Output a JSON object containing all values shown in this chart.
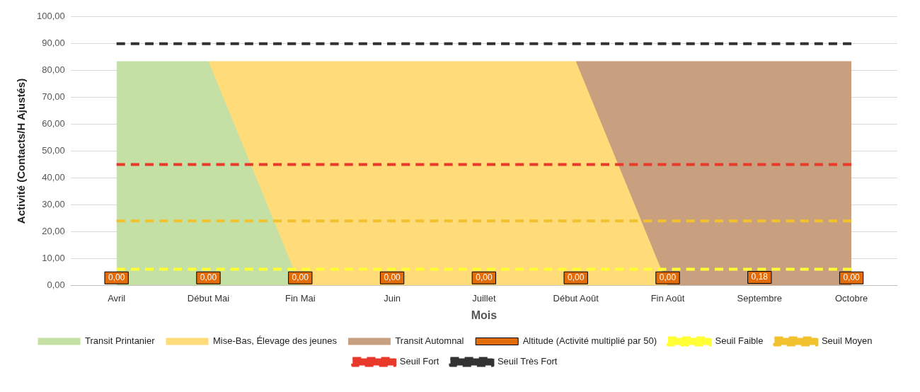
{
  "chart_data": {
    "type": "area",
    "xlabel": "Mois",
    "ylabel": "Activité (Contacts/H Ajustés)",
    "categories": [
      "Avril",
      "Début Mai",
      "Fin Mai",
      "Juin",
      "Juillet",
      "Début Août",
      "Fin Août",
      "Septembre",
      "Octobre"
    ],
    "ylim": [
      0,
      100
    ],
    "yticks": [
      {
        "value": 0,
        "label": "0,00"
      },
      {
        "value": 10,
        "label": "10,00"
      },
      {
        "value": 20,
        "label": "20,00"
      },
      {
        "value": 30,
        "label": "30,00"
      },
      {
        "value": 40,
        "label": "40,00"
      },
      {
        "value": 50,
        "label": "50,00"
      },
      {
        "value": 60,
        "label": "60,00"
      },
      {
        "value": 70,
        "label": "70,00"
      },
      {
        "value": 80,
        "label": "80,00"
      },
      {
        "value": 90,
        "label": "90,00"
      },
      {
        "value": 100,
        "label": "100,00"
      }
    ],
    "grid": "y",
    "legend": "bottom",
    "series": [
      {
        "name": "Transit Printanier",
        "color": "#c5e0a5",
        "values": [
          83.5,
          83.5,
          0,
          null,
          null,
          null,
          null,
          null,
          null
        ]
      },
      {
        "name": "Mise-Bas, Élevage des jeunes",
        "color": "#ffdb7a",
        "values": [
          null,
          83.5,
          83.5,
          83.5,
          83.5,
          83.5,
          0,
          null,
          null
        ]
      },
      {
        "name": "Transit Automnal",
        "color": "#c9a07f",
        "values": [
          null,
          null,
          null,
          null,
          null,
          83.5,
          83.5,
          83.5,
          83.5
        ]
      },
      {
        "name": "Altitude (Activité multiplié par 50)",
        "type": "bar",
        "color": "#e36c0a",
        "values": [
          0,
          0,
          0,
          0,
          0,
          0,
          0,
          0.18,
          0
        ],
        "value_labels": [
          "0,00",
          "0,00",
          "0,00",
          "0,00",
          "0,00",
          "0,00",
          "0,00",
          "0,18",
          "0,00"
        ]
      },
      {
        "name": "Seuil Faible",
        "type": "line",
        "color": "#ffff33",
        "line_style": "dashed",
        "marker": "none",
        "values": [
          6,
          6,
          6,
          6,
          6,
          6,
          6,
          6,
          6
        ]
      },
      {
        "name": "Seuil Moyen",
        "type": "line",
        "color": "#f2c12e",
        "line_style": "dashed",
        "marker": "none",
        "values": [
          24,
          24,
          24,
          24,
          24,
          24,
          24,
          24,
          24
        ]
      },
      {
        "name": "Seuil Fort",
        "type": "line",
        "color": "#e8392b",
        "line_style": "dashed",
        "marker": "none",
        "values": [
          45,
          45,
          45,
          45,
          45,
          45,
          45,
          45,
          45
        ]
      },
      {
        "name": "Seuil Très Fort",
        "type": "line",
        "color": "#333333",
        "line_style": "dashed",
        "marker": "none",
        "values": [
          90,
          90,
          90,
          90,
          90,
          90,
          90,
          90,
          90
        ]
      }
    ]
  }
}
